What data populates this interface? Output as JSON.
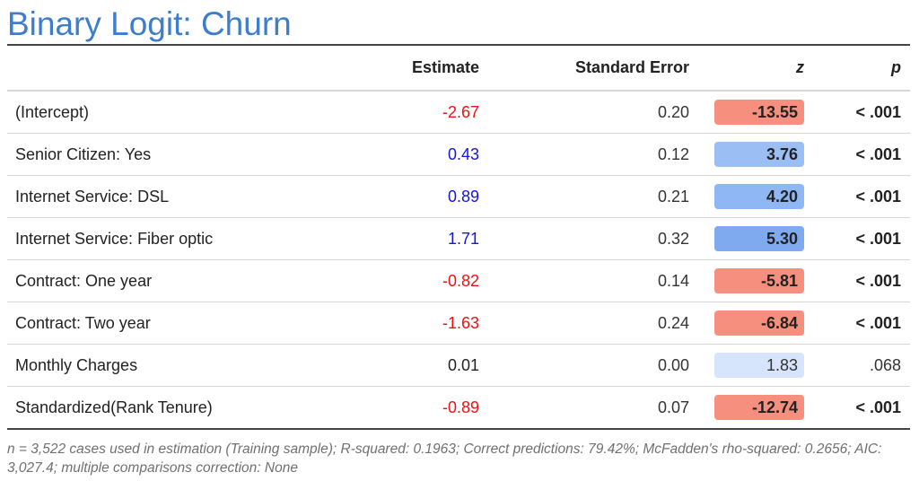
{
  "title": "Binary Logit: Churn",
  "columns": {
    "name": "",
    "estimate": "Estimate",
    "standard_error": "Standard Error",
    "z": "z",
    "p": "p"
  },
  "rows": [
    {
      "name": "(Intercept)",
      "estimate": "-2.67",
      "se": "0.20",
      "z": "-13.55",
      "p": "< .001"
    },
    {
      "name": "Senior Citizen: Yes",
      "estimate": "0.43",
      "se": "0.12",
      "z": "3.76",
      "p": "< .001"
    },
    {
      "name": "Internet Service: DSL",
      "estimate": "0.89",
      "se": "0.21",
      "z": "4.20",
      "p": "< .001"
    },
    {
      "name": "Internet Service: Fiber optic",
      "estimate": "1.71",
      "se": "0.32",
      "z": "5.30",
      "p": "< .001"
    },
    {
      "name": "Contract: One year",
      "estimate": "-0.82",
      "se": "0.14",
      "z": "-5.81",
      "p": "< .001"
    },
    {
      "name": "Contract: Two year",
      "estimate": "-1.63",
      "se": "0.24",
      "z": "-6.84",
      "p": "< .001"
    },
    {
      "name": "Monthly Charges",
      "estimate": "0.01",
      "se": "0.00",
      "z": "1.83",
      "p": ".068"
    },
    {
      "name": "Standardized(Rank Tenure)",
      "estimate": "-0.89",
      "se": "0.07",
      "z": "-12.74",
      "p": "< .001"
    }
  ],
  "colors": {
    "title": "#3e7dcc",
    "estimate_negative": "#ee1111",
    "estimate_positive": "#1515dd",
    "z_negative_fill": "#f78f7f",
    "z_positive_fill_strong": "#7faaf0",
    "z_positive_fill_medium": "#9bbff5",
    "z_positive_fill_light": "#d6e5fb"
  },
  "footnote": "n = 3,522 cases used in estimation (Training sample); R-squared: 0.1963; Correct predictions: 79.42%; McFadden's rho-squared: 0.2656; AIC: 3,027.4; multiple comparisons correction: None"
}
